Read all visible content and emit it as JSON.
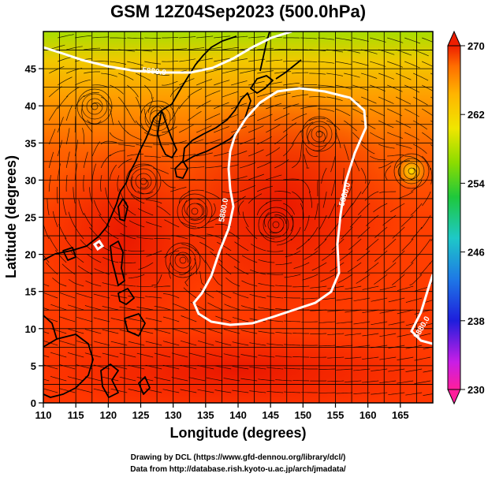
{
  "title": "GSM 12Z04Sep2023 (500.0hPa)",
  "xlabel": "Longitude (degrees)",
  "ylabel": "Latitude  (degrees)",
  "credits": [
    "Drawing by DCL (https://www.gfd-dennou.org/library/dcl/)",
    "Data from http://database.rish.kyoto-u.ac.jp/arch/jmadata/"
  ],
  "colors": {
    "cold": "#7fd400",
    "mid": "#ffb000",
    "warm": "#ff4a00",
    "hot": "#ee1c00",
    "contour": "#ffffff",
    "coast": "#000000",
    "grid": "#000000"
  },
  "map": {
    "lon_range": [
      110,
      170
    ],
    "lat_range": [
      0,
      50
    ],
    "lon_ticks": [
      110,
      115,
      120,
      125,
      130,
      135,
      140,
      145,
      150,
      155,
      160,
      165
    ],
    "lat_ticks": [
      0,
      5,
      10,
      15,
      20,
      25,
      30,
      35,
      40,
      45
    ],
    "grid": true,
    "field": "temperature (K), wind streamlines",
    "contour_labels": [
      "5880.0",
      "5880.0",
      "5880.0",
      "5880.0"
    ]
  },
  "colorbar": {
    "min": 230,
    "max": 270,
    "ticks": [
      "270",
      "262",
      "254",
      "246",
      "238",
      "230"
    ],
    "stops": [
      "#ff1e7a",
      "#d21fe0",
      "#1e1ee6",
      "#1f7fe6",
      "#19c8c8",
      "#1ec832",
      "#8cdc00",
      "#f0e600",
      "#ffb400",
      "#ff6e00",
      "#ee1e00"
    ]
  }
}
